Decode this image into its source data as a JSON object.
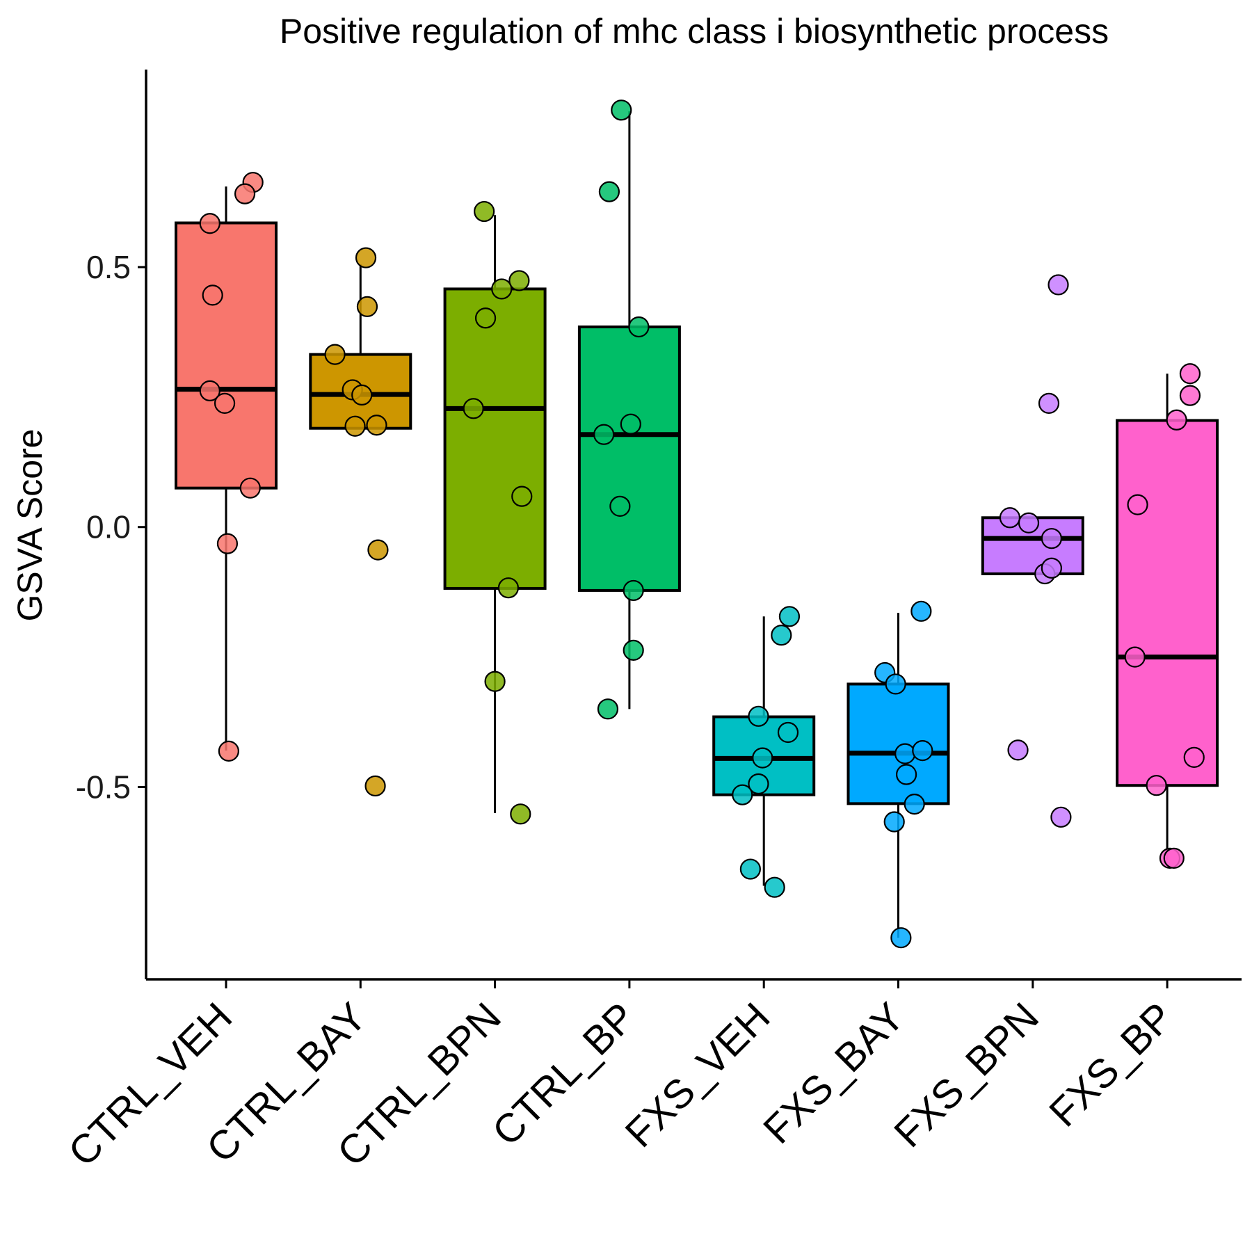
{
  "chart_data": {
    "type": "box",
    "title": "Positive regulation of mhc class i biosynthetic process",
    "xlabel": "",
    "ylabel": "GSVA Score",
    "ylim": [
      -0.87,
      0.88
    ],
    "yticks": [
      {
        "value": 0.5,
        "label": "0.5"
      },
      {
        "value": 0.0,
        "label": "0.0"
      },
      {
        "value": -0.5,
        "label": "-0.5"
      }
    ],
    "grid": false,
    "legend": "none",
    "groups": [
      {
        "name": "CTRL_VEH",
        "color": "#F8766D",
        "box": {
          "lower": -0.43,
          "q1": 0.075,
          "median": 0.265,
          "q3": 0.585,
          "upper": 0.655
        },
        "points": [
          [
            0.2,
            0.663
          ],
          [
            0.14,
            0.641
          ],
          [
            -0.12,
            0.584
          ],
          [
            -0.1,
            0.446
          ],
          [
            -0.12,
            0.262
          ],
          [
            -0.01,
            0.238
          ],
          [
            0.18,
            0.075
          ],
          [
            0.01,
            -0.032
          ],
          [
            0.02,
            -0.431
          ]
        ]
      },
      {
        "name": "CTRL_BAY",
        "color": "#CD9600",
        "box": {
          "lower": 0.19,
          "q1": 0.19,
          "median": 0.255,
          "q3": 0.332,
          "upper": 0.505
        },
        "points": [
          [
            0.04,
            0.518
          ],
          [
            0.05,
            0.424
          ],
          [
            -0.19,
            0.332
          ],
          [
            -0.06,
            0.264
          ],
          [
            0.01,
            0.254
          ],
          [
            -0.04,
            0.194
          ],
          [
            0.12,
            0.196
          ],
          [
            0.13,
            -0.044
          ],
          [
            0.11,
            -0.498
          ]
        ]
      },
      {
        "name": "CTRL_BPN",
        "color": "#7CAE00",
        "box": {
          "lower": -0.55,
          "q1": -0.118,
          "median": 0.228,
          "q3": 0.458,
          "upper": 0.6
        },
        "points": [
          [
            -0.08,
            0.607
          ],
          [
            0.18,
            0.474
          ],
          [
            0.05,
            0.458
          ],
          [
            -0.07,
            0.402
          ],
          [
            -0.16,
            0.228
          ],
          [
            0.2,
            0.059
          ],
          [
            0.1,
            -0.117
          ],
          [
            0.0,
            -0.297
          ],
          [
            0.19,
            -0.552
          ]
        ]
      },
      {
        "name": "CTRL_BP",
        "color": "#00BE67",
        "box": {
          "lower": -0.35,
          "q1": -0.122,
          "median": 0.178,
          "q3": 0.385,
          "upper": 0.8
        },
        "points": [
          [
            -0.06,
            0.802
          ],
          [
            -0.15,
            0.645
          ],
          [
            0.07,
            0.385
          ],
          [
            0.01,
            0.198
          ],
          [
            -0.19,
            0.178
          ],
          [
            -0.07,
            0.04
          ],
          [
            0.03,
            -0.122
          ],
          [
            0.03,
            -0.237
          ],
          [
            -0.16,
            -0.35
          ]
        ]
      },
      {
        "name": "FXS_VEH",
        "color": "#00BFC4",
        "box": {
          "lower": -0.69,
          "q1": -0.515,
          "median": -0.445,
          "q3": -0.365,
          "upper": -0.172
        },
        "points": [
          [
            0.19,
            -0.172
          ],
          [
            0.13,
            -0.208
          ],
          [
            -0.04,
            -0.364
          ],
          [
            0.18,
            -0.395
          ],
          [
            -0.01,
            -0.444
          ],
          [
            -0.04,
            -0.494
          ],
          [
            -0.16,
            -0.515
          ],
          [
            -0.1,
            -0.658
          ],
          [
            0.08,
            -0.693
          ]
        ]
      },
      {
        "name": "FXS_BAY",
        "color": "#00A9FF",
        "box": {
          "lower": -0.79,
          "q1": -0.532,
          "median": -0.435,
          "q3": -0.302,
          "upper": -0.165
        },
        "points": [
          [
            0.17,
            -0.162
          ],
          [
            -0.1,
            -0.28
          ],
          [
            -0.02,
            -0.302
          ],
          [
            0.05,
            -0.436
          ],
          [
            0.18,
            -0.43
          ],
          [
            0.06,
            -0.476
          ],
          [
            0.12,
            -0.533
          ],
          [
            -0.03,
            -0.567
          ],
          [
            0.02,
            -0.79
          ]
        ]
      },
      {
        "name": "FXS_BPN",
        "color": "#C77CFF",
        "box": {
          "lower": -0.09,
          "q1": -0.09,
          "median": -0.022,
          "q3": 0.018,
          "upper": 0.018
        },
        "points": [
          [
            0.19,
            0.466
          ],
          [
            0.12,
            0.238
          ],
          [
            -0.17,
            0.018
          ],
          [
            -0.03,
            0.008
          ],
          [
            0.14,
            -0.022
          ],
          [
            0.09,
            -0.09
          ],
          [
            0.14,
            -0.079
          ],
          [
            -0.11,
            -0.429
          ],
          [
            0.21,
            -0.558
          ]
        ]
      },
      {
        "name": "FXS_BP",
        "color": "#FF61CC",
        "box": {
          "lower": -0.64,
          "q1": -0.497,
          "median": -0.25,
          "q3": 0.205,
          "upper": 0.295
        },
        "points": [
          [
            0.17,
            0.295
          ],
          [
            0.17,
            0.253
          ],
          [
            0.07,
            0.206
          ],
          [
            -0.22,
            0.043
          ],
          [
            -0.24,
            -0.25
          ],
          [
            0.2,
            -0.443
          ],
          [
            -0.08,
            -0.497
          ],
          [
            0.02,
            -0.637
          ],
          [
            0.05,
            -0.637
          ]
        ]
      }
    ]
  }
}
